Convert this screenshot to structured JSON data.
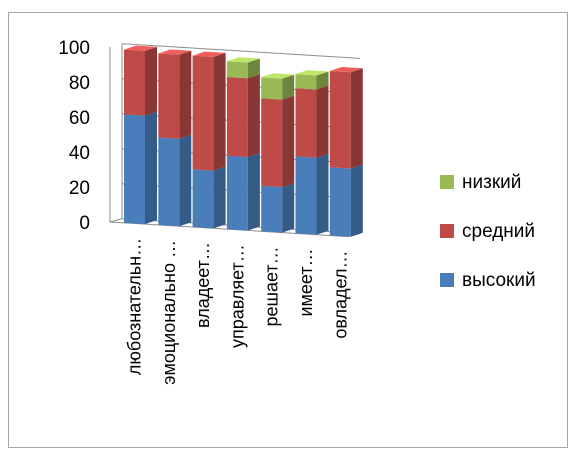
{
  "chart_data": {
    "type": "bar",
    "stacked": true,
    "three_d": true,
    "categories": [
      "любознательн…",
      "эмоционально …",
      "владеет…",
      "управляет…",
      "решает…",
      "имеет…",
      "овладел…"
    ],
    "series": [
      {
        "name": "высокий",
        "values": [
          62,
          50,
          33,
          42,
          26,
          44,
          39
        ],
        "color": "#4a7ebb"
      },
      {
        "name": "средний",
        "values": [
          37,
          48,
          65,
          45,
          50,
          39,
          55
        ],
        "color": "#be4b48"
      },
      {
        "name": "низкий",
        "values": [
          0,
          0,
          0,
          9,
          12,
          8,
          0
        ],
        "color": "#98b954"
      }
    ],
    "y_ticks": [
      "0",
      "20",
      "40",
      "60",
      "80",
      "100"
    ],
    "ylim": [
      0,
      100
    ],
    "grid": true,
    "legend_position": "right"
  }
}
